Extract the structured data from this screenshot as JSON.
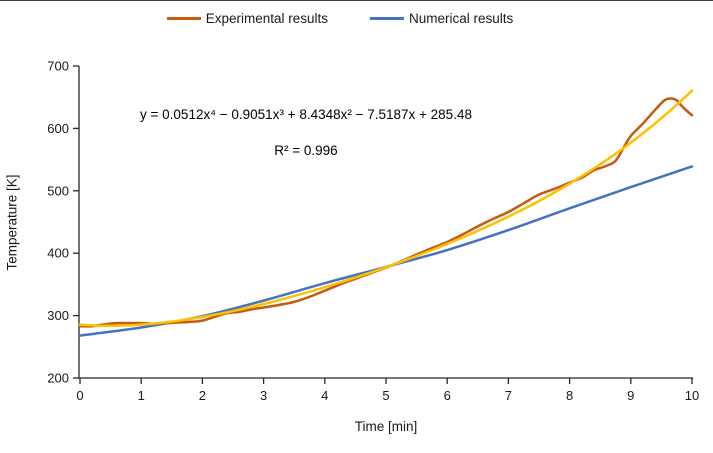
{
  "legend": {
    "items": [
      {
        "label": "Experimental results",
        "color": "#C55A11"
      },
      {
        "label": "Numerical results",
        "color": "#4472C4"
      }
    ]
  },
  "annotation": {
    "equation": "y = 0.0512x⁴ − 0.9051x³ + 8.4348x² − 7.5187x + 285.48",
    "r_squared": "R² = 0.996"
  },
  "chart_data": {
    "type": "line",
    "title": "",
    "xlabel": "Time [min]",
    "ylabel": "Temperature [K]",
    "xlim": [
      0,
      10
    ],
    "ylim": [
      200,
      700
    ],
    "x_ticks": [
      0,
      1,
      2,
      3,
      4,
      5,
      6,
      7,
      8,
      9,
      10
    ],
    "y_ticks": [
      200,
      300,
      400,
      500,
      600,
      700
    ],
    "grid": false,
    "legend_position": "top",
    "series": [
      {
        "name": "Experimental results",
        "color": "#C55A11",
        "width": 2.5,
        "x": [
          0,
          0.2,
          0.4,
          0.6,
          0.8,
          1.0,
          1.2,
          1.4,
          1.6,
          1.8,
          2.0,
          2.2,
          2.4,
          2.6,
          2.8,
          3.0,
          3.25,
          3.5,
          3.75,
          4.0,
          4.25,
          4.5,
          4.75,
          5.0,
          5.25,
          5.5,
          5.75,
          6.0,
          6.25,
          6.5,
          6.75,
          7.0,
          7.25,
          7.5,
          7.75,
          8.0,
          8.2,
          8.4,
          8.6,
          8.75,
          8.9,
          9.0,
          9.2,
          9.4,
          9.55,
          9.65,
          9.75,
          9.85,
          10
        ],
        "y": [
          283,
          283,
          286,
          288,
          288,
          288,
          287,
          288,
          289,
          290,
          292,
          298,
          304,
          306,
          310,
          313,
          317,
          322,
          330,
          340,
          350,
          359,
          368,
          377,
          387,
          398,
          408,
          418,
          430,
          443,
          455,
          466,
          480,
          494,
          503,
          513,
          521,
          533,
          540,
          548,
          572,
          588,
          608,
          630,
          645,
          648,
          645,
          634,
          621
        ]
      },
      {
        "name": "Numerical results",
        "color": "#4472C4",
        "width": 2.5,
        "x": [
          0,
          1,
          2,
          3,
          4,
          5,
          6,
          7,
          8,
          9,
          10
        ],
        "y": [
          268,
          281,
          299,
          324,
          352,
          378,
          405,
          437,
          472,
          506,
          539
        ]
      },
      {
        "name": "Polynomial trendline",
        "type": "trendline",
        "color": "#FFC000",
        "width": 2.5,
        "coefficients": [
          0.0512,
          -0.9051,
          8.4348,
          -7.5187,
          285.48
        ],
        "x_range": [
          0,
          10
        ],
        "r_squared": 0.996
      }
    ]
  }
}
